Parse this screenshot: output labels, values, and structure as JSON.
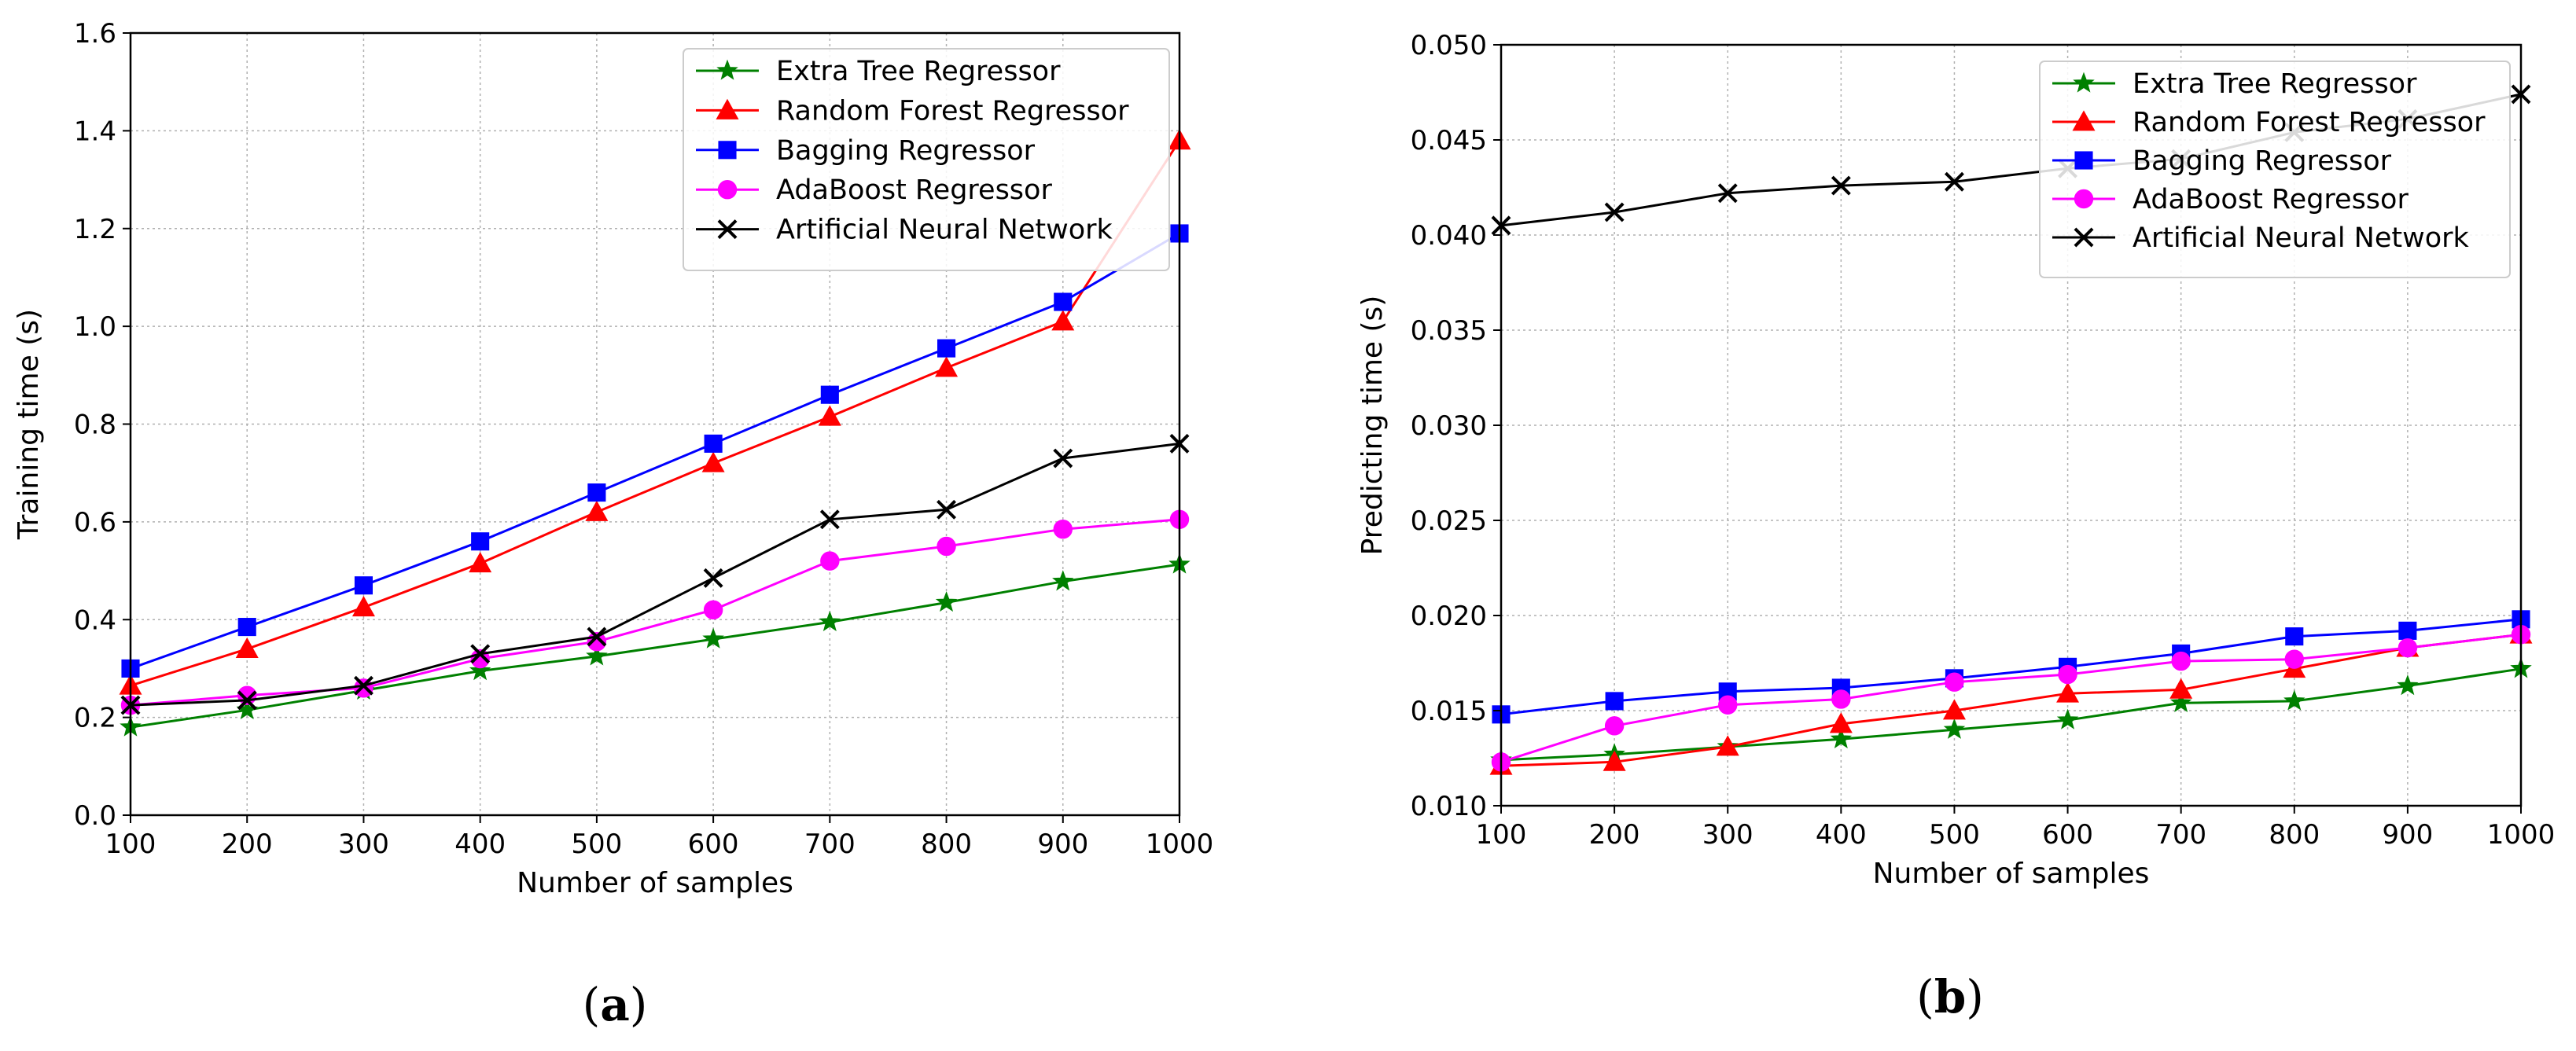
{
  "chart_data": [
    {
      "panel": "(a)",
      "panel_letter": "a",
      "type": "line",
      "xlabel": "Number of samples",
      "ylabel": "Training time (s)",
      "xlim": [
        100,
        1000
      ],
      "ylim": [
        0.0,
        1.6
      ],
      "grid": true,
      "legend_position": "top-right",
      "x": [
        100,
        200,
        300,
        400,
        500,
        600,
        700,
        800,
        900,
        1000
      ],
      "xticks": [
        "100",
        "200",
        "300",
        "400",
        "500",
        "600",
        "700",
        "800",
        "900",
        "1000"
      ],
      "yticks": [
        0.0,
        0.2,
        0.4,
        0.6,
        0.8,
        1.0,
        1.2,
        1.4,
        1.6
      ],
      "ytick_labels": [
        "0.0",
        "0.2",
        "0.4",
        "0.6",
        "0.8",
        "1.0",
        "1.2",
        "1.4",
        "1.6"
      ],
      "series": [
        {
          "name": "Extra Tree Regressor",
          "color": "#008000",
          "marker": "star",
          "values": [
            0.18,
            0.215,
            0.255,
            0.295,
            0.325,
            0.36,
            0.395,
            0.435,
            0.478,
            0.513
          ]
        },
        {
          "name": "Random Forest Regressor",
          "color": "#ff0000",
          "marker": "triangle",
          "values": [
            0.265,
            0.34,
            0.425,
            0.515,
            0.62,
            0.72,
            0.815,
            0.915,
            1.01,
            1.38
          ]
        },
        {
          "name": "Bagging Regressor",
          "color": "#0000ff",
          "marker": "square",
          "values": [
            0.3,
            0.385,
            0.47,
            0.56,
            0.66,
            0.76,
            0.86,
            0.955,
            1.05,
            1.19
          ]
        },
        {
          "name": "AdaBoost Regressor",
          "color": "#ff00ff",
          "marker": "circle",
          "values": [
            0.225,
            0.245,
            0.26,
            0.32,
            0.355,
            0.42,
            0.52,
            0.55,
            0.585,
            0.605
          ]
        },
        {
          "name": "Artificial Neural Network",
          "color": "#000000",
          "marker": "x",
          "values": [
            0.225,
            0.235,
            0.265,
            0.33,
            0.365,
            0.485,
            0.605,
            0.625,
            0.73,
            0.76
          ]
        }
      ]
    },
    {
      "panel": "(b)",
      "panel_letter": "b",
      "type": "line",
      "xlabel": "Number of samples",
      "ylabel": "Predicting time (s)",
      "xlim": [
        100,
        1000
      ],
      "ylim": [
        0.01,
        0.05
      ],
      "grid": true,
      "legend_position": "top-right",
      "x": [
        100,
        200,
        300,
        400,
        500,
        600,
        700,
        800,
        900,
        1000
      ],
      "xticks": [
        "100",
        "200",
        "300",
        "400",
        "500",
        "600",
        "700",
        "800",
        "900",
        "1000"
      ],
      "yticks": [
        0.01,
        0.015,
        0.02,
        0.025,
        0.03,
        0.035,
        0.04,
        0.045,
        0.05
      ],
      "ytick_labels": [
        "0.010",
        "0.015",
        "0.020",
        "0.025",
        "0.030",
        "0.035",
        "0.040",
        "0.045",
        "0.050"
      ],
      "series": [
        {
          "name": "Extra Tree Regressor",
          "color": "#008000",
          "marker": "star",
          "values": [
            0.0124,
            0.0127,
            0.0131,
            0.0135,
            0.014,
            0.0145,
            0.0154,
            0.0155,
            0.0163,
            0.0172
          ]
        },
        {
          "name": "Random Forest Regressor",
          "color": "#ff0000",
          "marker": "triangle",
          "values": [
            0.0121,
            0.0123,
            0.0131,
            0.0143,
            0.015,
            0.0159,
            0.0161,
            0.0172,
            0.0183,
            0.019
          ]
        },
        {
          "name": "Bagging Regressor",
          "color": "#0000ff",
          "marker": "square",
          "values": [
            0.0148,
            0.0155,
            0.016,
            0.0162,
            0.0167,
            0.0173,
            0.018,
            0.0189,
            0.0192,
            0.0198
          ]
        },
        {
          "name": "AdaBoost Regressor",
          "color": "#ff00ff",
          "marker": "circle",
          "values": [
            0.0123,
            0.0142,
            0.0153,
            0.0156,
            0.0165,
            0.0169,
            0.0176,
            0.0177,
            0.0183,
            0.019
          ]
        },
        {
          "name": "Artificial Neural Network",
          "color": "#000000",
          "marker": "x",
          "values": [
            0.0405,
            0.0412,
            0.0422,
            0.0426,
            0.0428,
            0.0435,
            0.044,
            0.0454,
            0.0461,
            0.0474
          ]
        }
      ]
    }
  ]
}
